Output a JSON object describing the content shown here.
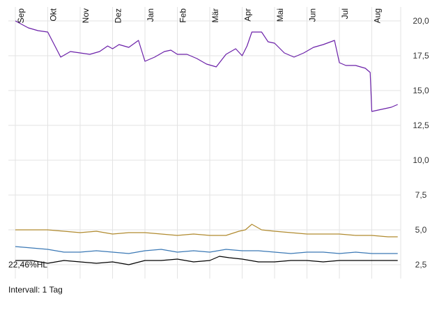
{
  "chart_data": {
    "type": "line",
    "months": [
      "Sep",
      "Okt",
      "Nov",
      "Dez",
      "Jan",
      "Feb",
      "Mär",
      "Apr",
      "Mai",
      "Jun",
      "Jul",
      "Aug"
    ],
    "y_ticks": [
      "2,5",
      "5,0",
      "7,5",
      "10,0",
      "12,5",
      "15,0",
      "17,5",
      "20,0"
    ],
    "ylim": [
      2.0,
      21.0
    ],
    "grid": true,
    "series": [
      {
        "color": "#6a1fa8",
        "x": [
          0,
          0.4,
          0.7,
          1.0,
          1.4,
          1.7,
          2.0,
          2.3,
          2.6,
          2.85,
          3.0,
          3.2,
          3.5,
          3.8,
          4.0,
          4.3,
          4.6,
          4.8,
          5.0,
          5.3,
          5.6,
          5.9,
          6.2,
          6.5,
          6.8,
          7.0,
          7.15,
          7.3,
          7.6,
          7.8,
          8.0,
          8.3,
          8.6,
          8.9,
          9.2,
          9.5,
          9.85,
          10.0,
          10.2,
          10.5,
          10.8,
          10.95,
          11.0,
          11.2,
          11.4,
          11.6,
          11.8
        ],
        "y": [
          20.0,
          19.5,
          19.3,
          19.2,
          17.4,
          17.8,
          17.7,
          17.6,
          17.8,
          18.2,
          18.0,
          18.3,
          18.1,
          18.6,
          17.1,
          17.4,
          17.8,
          17.9,
          17.6,
          17.6,
          17.3,
          16.9,
          16.7,
          17.6,
          18.0,
          17.5,
          18.2,
          19.2,
          19.2,
          18.5,
          18.4,
          17.7,
          17.4,
          17.7,
          18.1,
          18.3,
          18.6,
          17.0,
          16.8,
          16.8,
          16.6,
          16.3,
          13.5,
          13.6,
          13.7,
          13.8,
          14.0
        ]
      },
      {
        "color": "#b08a2e",
        "x": [
          0,
          0.5,
          1.0,
          1.5,
          2.0,
          2.5,
          3.0,
          3.5,
          4.0,
          4.5,
          5.0,
          5.5,
          6.0,
          6.5,
          6.9,
          7.1,
          7.3,
          7.6,
          8.0,
          8.5,
          9.0,
          9.5,
          10.0,
          10.5,
          11.0,
          11.5,
          11.8
        ],
        "y": [
          5.0,
          5.0,
          5.0,
          4.9,
          4.8,
          4.9,
          4.7,
          4.8,
          4.8,
          4.7,
          4.6,
          4.7,
          4.6,
          4.6,
          4.9,
          5.0,
          5.4,
          5.0,
          4.9,
          4.8,
          4.7,
          4.7,
          4.7,
          4.6,
          4.6,
          4.5,
          4.5
        ]
      },
      {
        "color": "#3a78b5",
        "x": [
          0,
          0.5,
          1.0,
          1.5,
          2.0,
          2.5,
          3.0,
          3.5,
          4.0,
          4.5,
          5.0,
          5.5,
          6.0,
          6.5,
          7.0,
          7.5,
          8.0,
          8.5,
          9.0,
          9.5,
          10.0,
          10.5,
          11.0,
          11.5,
          11.8
        ],
        "y": [
          3.8,
          3.7,
          3.6,
          3.4,
          3.4,
          3.5,
          3.4,
          3.3,
          3.5,
          3.6,
          3.4,
          3.5,
          3.4,
          3.6,
          3.5,
          3.5,
          3.4,
          3.3,
          3.4,
          3.4,
          3.3,
          3.4,
          3.3,
          3.3,
          3.3
        ]
      },
      {
        "color": "#000000",
        "x": [
          0,
          0.5,
          1.0,
          1.5,
          2.0,
          2.5,
          3.0,
          3.5,
          4.0,
          4.5,
          5.0,
          5.5,
          6.0,
          6.3,
          6.6,
          7.0,
          7.5,
          8.0,
          8.5,
          9.0,
          9.5,
          10.0,
          10.5,
          11.0,
          11.5,
          11.8
        ],
        "y": [
          2.8,
          2.8,
          2.6,
          2.8,
          2.7,
          2.6,
          2.7,
          2.5,
          2.8,
          2.8,
          2.9,
          2.7,
          2.8,
          3.1,
          3.0,
          2.9,
          2.7,
          2.7,
          2.8,
          2.8,
          2.7,
          2.8,
          2.8,
          2.8,
          2.8,
          2.8
        ]
      }
    ]
  },
  "footer": {
    "range_label": "22,46%HL",
    "interval_label": "Intervall: 1 Tag"
  }
}
